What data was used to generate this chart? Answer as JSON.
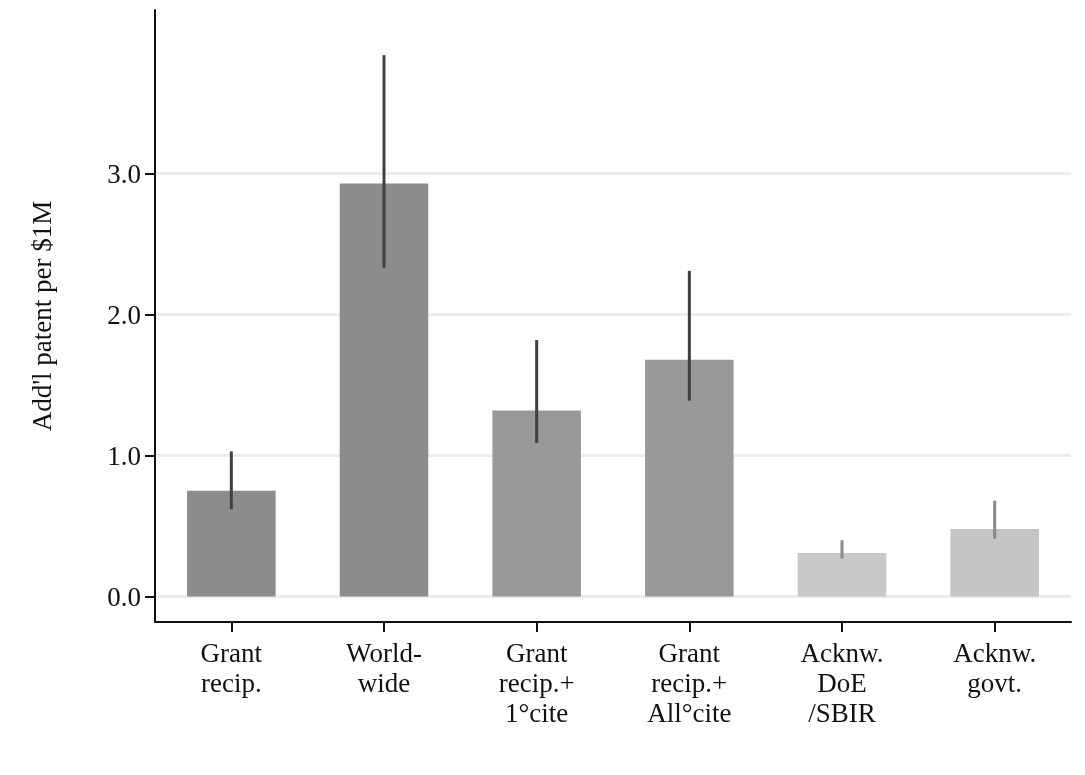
{
  "chart_data": {
    "type": "bar",
    "ylabel": "Add'l patent per $1M",
    "categories": [
      "Grant\nrecip.",
      "World-\nwide",
      "Grant\nrecip.+\n1°cite",
      "Grant\nrecip.+\nAll°cite",
      "Acknw.\nDoE\n/SBIR",
      "Acknw.\ngovt."
    ],
    "values": [
      0.75,
      2.93,
      1.32,
      1.68,
      0.31,
      0.48
    ],
    "colors": [
      "#8c8c8c",
      "#8c8c8c",
      "#989898",
      "#989898",
      "#c8c8c8",
      "#c4c4c4"
    ],
    "errors": [
      [
        0.62,
        1.03
      ],
      [
        2.33,
        3.84
      ],
      [
        1.09,
        1.82
      ],
      [
        1.39,
        2.31
      ],
      [
        0.27,
        0.4
      ],
      [
        0.41,
        0.68
      ]
    ],
    "ylim": [
      -0.18,
      4.16
    ],
    "yticks": [
      {
        "value": 0,
        "label": "0.0"
      },
      {
        "value": 1,
        "label": "1.0"
      },
      {
        "value": 2,
        "label": "2.0"
      },
      {
        "value": 3,
        "label": "3.0"
      }
    ],
    "grid": "y"
  }
}
